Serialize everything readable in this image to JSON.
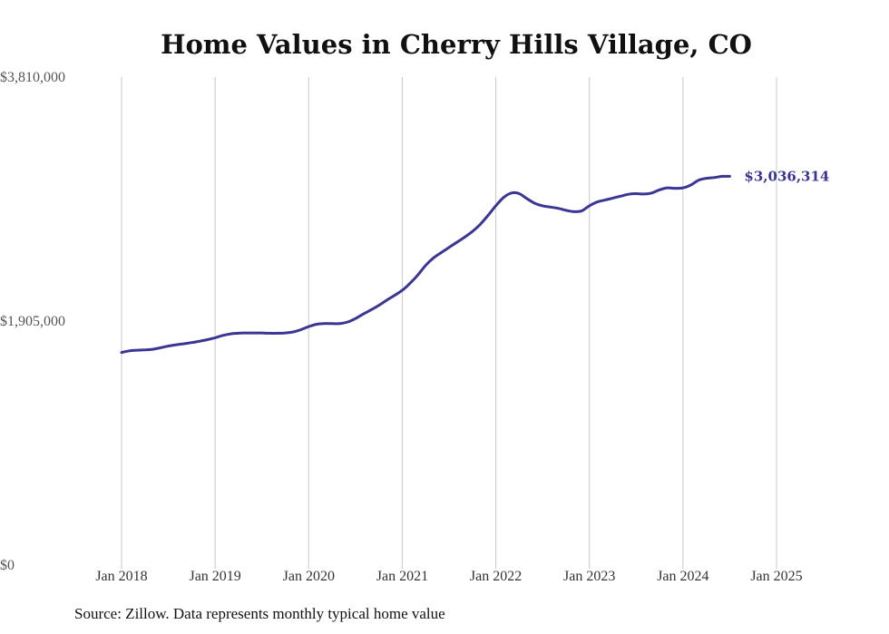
{
  "chart_data": {
    "type": "line",
    "title": "Home Values in Cherry Hills Village, CO",
    "xlabel": "",
    "ylabel": "",
    "ylim": [
      0,
      3810000
    ],
    "y_ticks": [
      "$0",
      "$1,905,000",
      "$3,810,000"
    ],
    "x_ticks": [
      "Jan 2018",
      "Jan 2019",
      "Jan 2020",
      "Jan 2021",
      "Jan 2022",
      "Jan 2023",
      "Jan 2024",
      "Jan 2025"
    ],
    "grid": "vertical",
    "line_color": "#3b3594",
    "end_label": "$3,036,314",
    "start": "2018-01",
    "series": [
      {
        "values": [
          1660000,
          1673000,
          1678000,
          1680000,
          1685000,
          1697000,
          1710000,
          1720000,
          1728000,
          1737000,
          1748000,
          1760000,
          1775000,
          1793000,
          1805000,
          1810000,
          1812000,
          1812000,
          1812000,
          1810000,
          1810000,
          1812000,
          1820000,
          1838000,
          1862000,
          1880000,
          1886000,
          1885000,
          1886000,
          1898000,
          1925000,
          1960000,
          1993000,
          2028000,
          2068000,
          2105000,
          2145000,
          2200000,
          2265000,
          2340000,
          2398000,
          2440000,
          2480000,
          2520000,
          2560000,
          2605000,
          2660000,
          2730000,
          2805000,
          2870000,
          2905000,
          2900000,
          2860000,
          2825000,
          2805000,
          2795000,
          2785000,
          2770000,
          2760000,
          2765000,
          2805000,
          2835000,
          2850000,
          2865000,
          2880000,
          2895000,
          2900000,
          2897000,
          2905000,
          2930000,
          2945000,
          2942000,
          2945000,
          2967000,
          3005000,
          3020000,
          3025000,
          3035000,
          3035000
        ]
      }
    ]
  },
  "footer": {
    "source": "Source: Zillow. Data represents monthly typical home value"
  }
}
